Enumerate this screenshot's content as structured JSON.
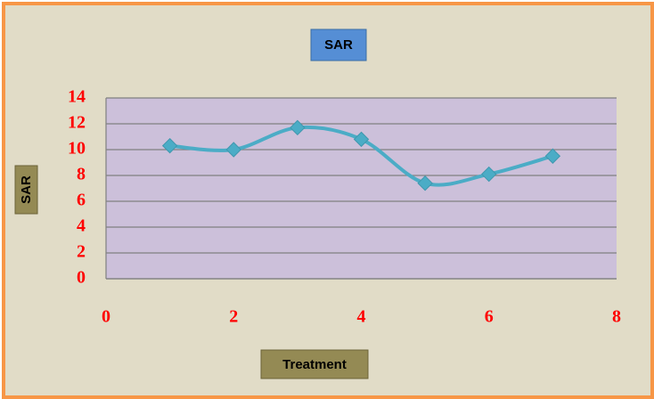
{
  "chart_data": {
    "type": "line",
    "title": "SAR",
    "x_label": "Treatment",
    "y_label": "SAR",
    "series": [
      {
        "name": "SAR",
        "color": "#4bacc6",
        "x": [
          1,
          2,
          3,
          4,
          5,
          6,
          7
        ],
        "values": [
          10.3,
          10,
          11.7,
          10.8,
          7.4,
          8.1,
          9.5
        ]
      }
    ],
    "xlim": [
      0,
      8
    ],
    "xticks": [
      0,
      2,
      4,
      6,
      8
    ],
    "ylim": [
      0,
      14
    ],
    "yticks": [
      0,
      2,
      4,
      6,
      8,
      10,
      12,
      14
    ],
    "grid": true,
    "smooth": true
  }
}
